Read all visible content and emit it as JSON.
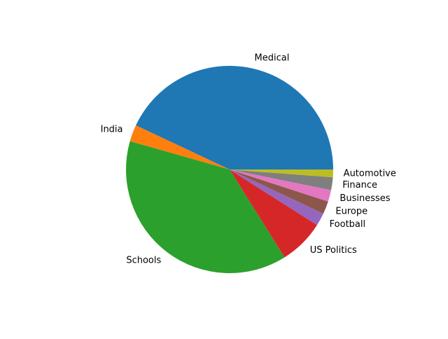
{
  "chart_data": {
    "type": "pie",
    "categories": [
      "Medical",
      "India",
      "Schools",
      "US Politics",
      "Football",
      "Europe",
      "Businesses",
      "Finance",
      "Automotive"
    ],
    "values": [
      43.0,
      2.6,
      38.3,
      7.1,
      2.0,
      2.0,
      1.8,
      2.0,
      1.2
    ],
    "colors": [
      "#1f77b4",
      "#ff7f0e",
      "#2ca02c",
      "#d62728",
      "#9467bd",
      "#8c564b",
      "#e377c2",
      "#7f7f7f",
      "#bcbd22"
    ],
    "start_angle_deg": 0,
    "direction": "counterclockwise",
    "title": "",
    "legend": "none"
  }
}
